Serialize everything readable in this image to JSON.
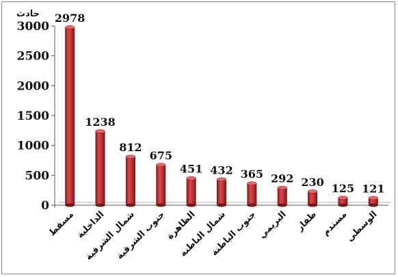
{
  "chart_data": {
    "type": "bar",
    "title": "",
    "ylabel": "حادث",
    "xlabel": "",
    "ylim": [
      0,
      3000
    ],
    "yticks": [
      0,
      500,
      1000,
      1500,
      2000,
      2500,
      3000
    ],
    "categories": [
      "مسقط",
      "الداخلية",
      "شمال الشرقية",
      "جنوب الشرقية",
      "الظاهرة",
      "شمال الباطنة",
      "جنوب الباطنة",
      "البريمي",
      "ظفار",
      "مسندم",
      "الوسطى"
    ],
    "values": [
      2978,
      1238,
      812,
      675,
      451,
      432,
      365,
      292,
      230,
      125,
      121
    ],
    "bar_color": "#c0393b",
    "grid": false,
    "legend": "none"
  }
}
